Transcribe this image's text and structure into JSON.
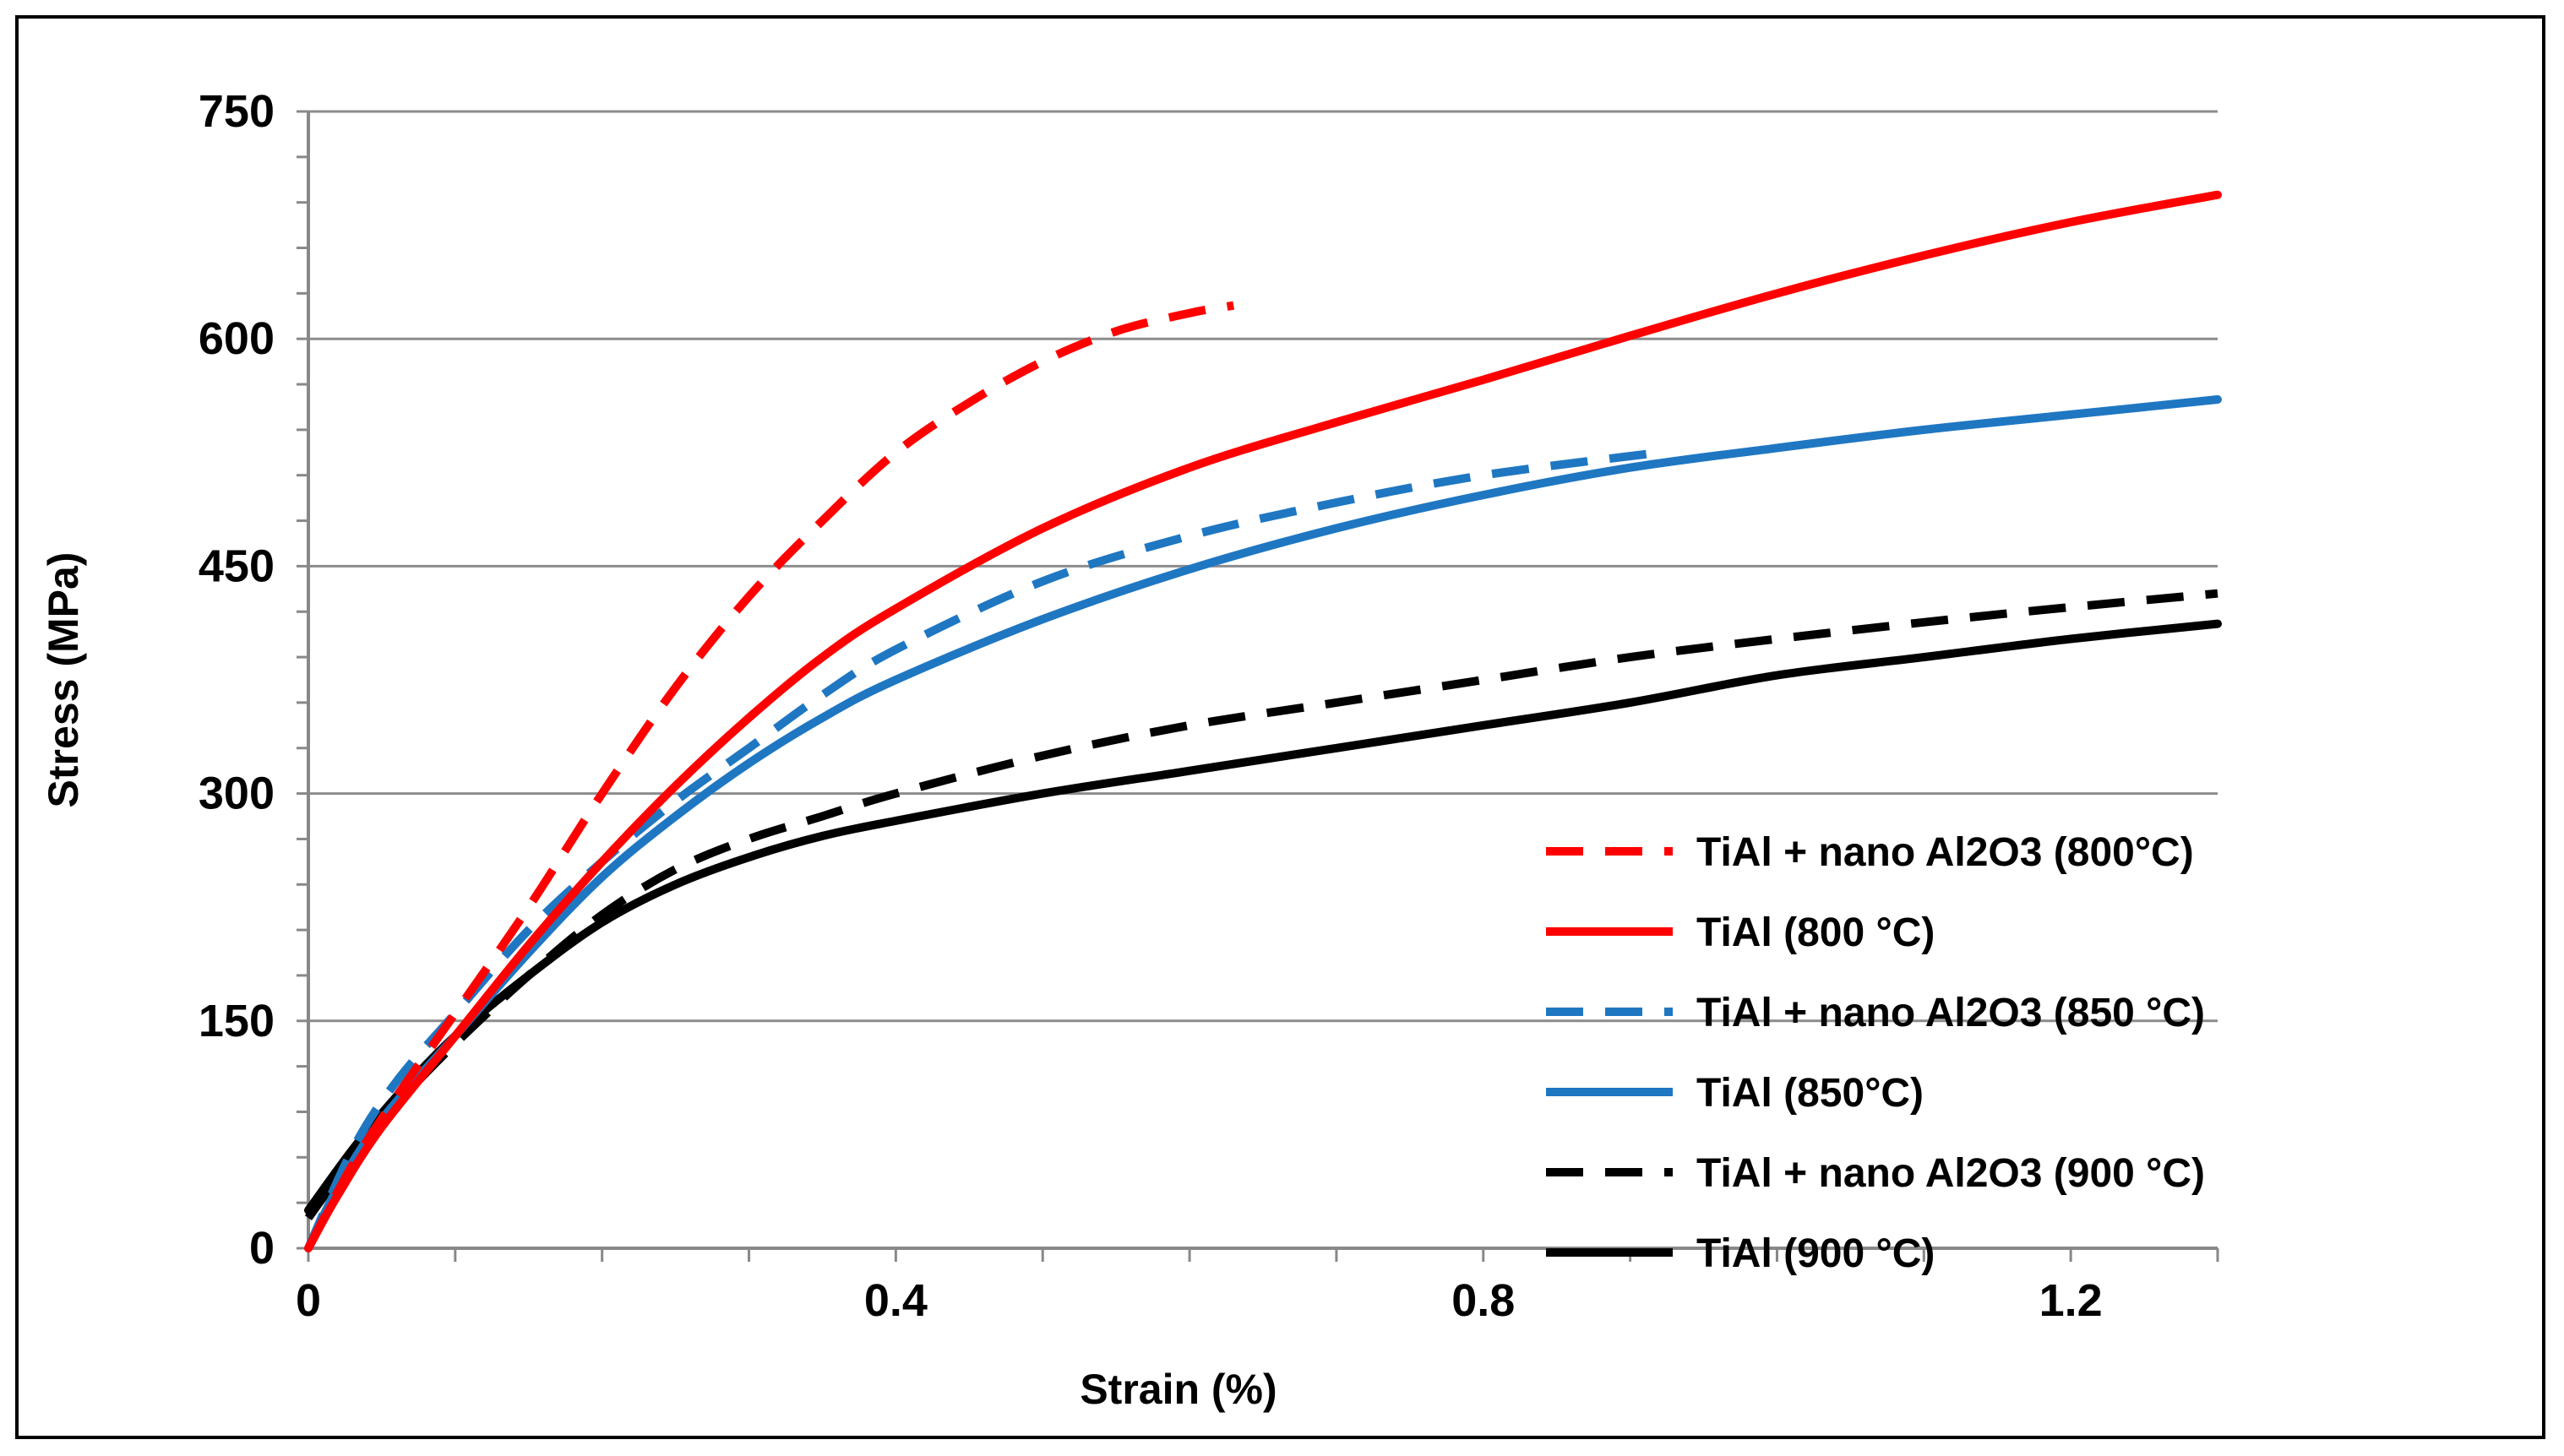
{
  "chart_data": {
    "type": "line",
    "title": "",
    "xlabel": "Strain (%)",
    "ylabel": "Stress (MPa)",
    "xlim": [
      0,
      1.3
    ],
    "ylim": [
      0,
      750
    ],
    "x_ticks": [
      0,
      0.4,
      0.8,
      1.2
    ],
    "x_tick_labels": [
      "0",
      "0.4",
      "0.8",
      "1.2"
    ],
    "y_ticks": [
      0,
      150,
      300,
      450,
      600,
      750
    ],
    "y_tick_labels": [
      "0",
      "150",
      "300",
      "450",
      "600",
      "750"
    ],
    "x_minor_step": 0.1,
    "y_minor_step": 30,
    "grid": "horizontal-major",
    "legend_position": "bottom-right",
    "series": [
      {
        "name": "TiAl + nano Al2O3 (800°C)",
        "color": "#ff0000",
        "dash": "dashed",
        "x": [
          0,
          0.03,
          0.06,
          0.1,
          0.15,
          0.2,
          0.25,
          0.3,
          0.35,
          0.4,
          0.45,
          0.5,
          0.55,
          0.6,
          0.63
        ],
        "y": [
          0,
          55,
          100,
          155,
          225,
          300,
          370,
          430,
          480,
          525,
          558,
          585,
          605,
          617,
          622
        ]
      },
      {
        "name": "TiAl (800 °C)",
        "color": "#ff0000",
        "dash": "solid",
        "x": [
          0,
          0.02,
          0.05,
          0.1,
          0.15,
          0.2,
          0.25,
          0.3,
          0.35,
          0.4,
          0.5,
          0.6,
          0.7,
          0.8,
          0.9,
          1.0,
          1.1,
          1.2,
          1.3
        ],
        "y": [
          0,
          35,
          80,
          140,
          200,
          255,
          305,
          350,
          390,
          422,
          475,
          515,
          545,
          573,
          602,
          630,
          655,
          677,
          695
        ]
      },
      {
        "name": "TiAl + nano Al2O3 (850 °C)",
        "color": "#1f77c2",
        "dash": "dashed",
        "x": [
          0,
          0.03,
          0.06,
          0.1,
          0.15,
          0.2,
          0.25,
          0.3,
          0.35,
          0.4,
          0.5,
          0.6,
          0.7,
          0.8,
          0.92
        ],
        "y": [
          0,
          65,
          110,
          155,
          210,
          255,
          295,
          330,
          365,
          395,
          440,
          470,
          492,
          510,
          525
        ]
      },
      {
        "name": "TiAl (850°C)",
        "color": "#1f77c2",
        "dash": "solid",
        "x": [
          0,
          0.02,
          0.05,
          0.1,
          0.15,
          0.2,
          0.25,
          0.3,
          0.35,
          0.4,
          0.5,
          0.6,
          0.7,
          0.8,
          0.9,
          1.0,
          1.1,
          1.2,
          1.3
        ],
        "y": [
          0,
          40,
          85,
          140,
          195,
          245,
          285,
          320,
          350,
          375,
          415,
          448,
          475,
          497,
          515,
          528,
          540,
          550,
          560
        ]
      },
      {
        "name": "TiAl + nano Al2O3 (900 °C)",
        "color": "#000000",
        "dash": "dashed",
        "x": [
          0,
          0.03,
          0.06,
          0.1,
          0.15,
          0.2,
          0.25,
          0.3,
          0.35,
          0.4,
          0.5,
          0.6,
          0.7,
          0.8,
          0.9,
          1.0,
          1.1,
          1.2,
          1.3
        ],
        "y": [
          20,
          60,
          95,
          135,
          180,
          220,
          250,
          270,
          285,
          300,
          325,
          345,
          360,
          375,
          390,
          402,
          413,
          423,
          432
        ]
      },
      {
        "name": "TiAl  (900 °C)",
        "color": "#000000",
        "dash": "solid",
        "x": [
          0,
          0.03,
          0.06,
          0.1,
          0.15,
          0.2,
          0.25,
          0.3,
          0.35,
          0.4,
          0.5,
          0.6,
          0.7,
          0.8,
          0.9,
          1.0,
          1.1,
          1.2,
          1.3
        ],
        "y": [
          25,
          65,
          100,
          140,
          180,
          215,
          240,
          258,
          272,
          282,
          300,
          315,
          330,
          345,
          360,
          378,
          390,
          402,
          412
        ]
      }
    ]
  }
}
